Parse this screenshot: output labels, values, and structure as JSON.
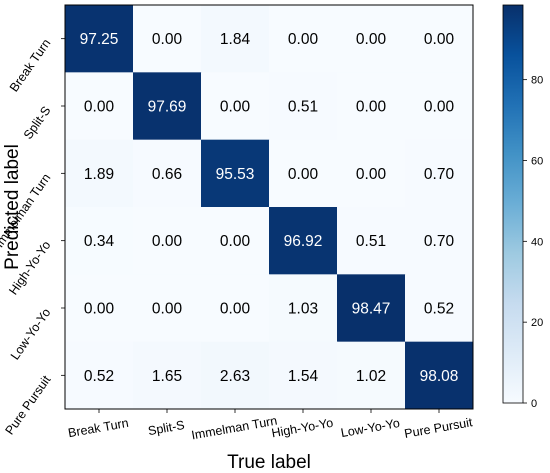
{
  "chart_data": {
    "type": "heatmap",
    "title": "",
    "xlabel": "True label",
    "ylabel": "Predicted label",
    "x_categories": [
      "Break Turn",
      "Split-S",
      "Immelman Turn",
      "High-Yo-Yo",
      "Low-Yo-Yo",
      "Pure Pursuit"
    ],
    "y_categories": [
      "Break Turn",
      "Split-S",
      "Immelman Turn",
      "High-Yo-Yo",
      "Low-Yo-Yo",
      "Pure Pursuit"
    ],
    "values": [
      [
        "97.25",
        "0.00",
        "1.84",
        "0.00",
        "0.00",
        "0.00"
      ],
      [
        "0.00",
        "97.69",
        "0.00",
        "0.51",
        "0.00",
        "0.00"
      ],
      [
        "1.89",
        "0.66",
        "95.53",
        "0.00",
        "0.00",
        "0.70"
      ],
      [
        "0.34",
        "0.00",
        "0.00",
        "96.92",
        "0.51",
        "0.70"
      ],
      [
        "0.00",
        "0.00",
        "0.00",
        "1.03",
        "98.47",
        "0.52"
      ],
      [
        "0.52",
        "1.65",
        "2.63",
        "1.54",
        "1.02",
        "98.08"
      ]
    ],
    "colorbar": {
      "range": [
        0,
        98.47
      ],
      "ticks": [
        "0",
        "20",
        "40",
        "60",
        "80"
      ],
      "colormap": "Blues",
      "color_low": "#f7fbff",
      "color_high": "#08306b"
    },
    "grid": false,
    "legend": "none"
  }
}
